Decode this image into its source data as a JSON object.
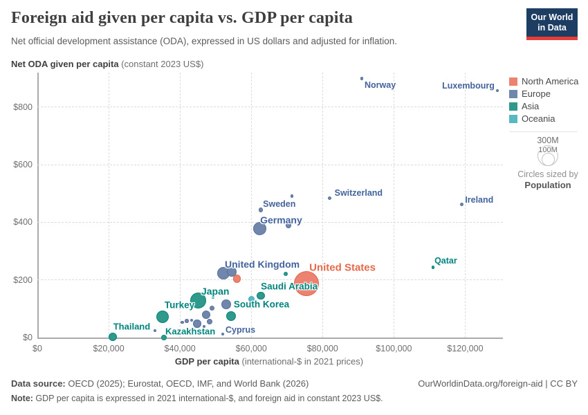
{
  "header": {
    "title": "Foreign aid given per capita vs. GDP per capita",
    "subtitle": "Net official development assistance (ODA), expressed in US dollars and adjusted for inflation.",
    "logo": {
      "line1": "Our World",
      "line2": "in Data",
      "bg": "#1d3d63",
      "bar": "#e63e36"
    }
  },
  "legend": {
    "items": [
      {
        "label": "North America",
        "color": "#ec8270"
      },
      {
        "label": "Europe",
        "color": "#7086ab"
      },
      {
        "label": "Asia",
        "color": "#2f998c"
      },
      {
        "label": "Oceania",
        "color": "#58b9c3"
      }
    ],
    "size": {
      "outer": "300M",
      "inner": "100M",
      "caption": "Circles sized by",
      "caption_bold": "Population"
    }
  },
  "chart_data": {
    "type": "scatter",
    "title": "Foreign aid given per capita vs. GDP per capita",
    "size_by": "Population",
    "grid": true,
    "legend_position": "right",
    "x": {
      "title_bold": "GDP per capita",
      "title_unit": " (international-$ in 2021 prices)",
      "min": 0,
      "max": 130000,
      "ticks": [
        {
          "value": 0,
          "label": "$0"
        },
        {
          "value": 20000,
          "label": "$20,000"
        },
        {
          "value": 40000,
          "label": "$40,000"
        },
        {
          "value": 60000,
          "label": "$60,000"
        },
        {
          "value": 80000,
          "label": "$80,000"
        },
        {
          "value": 100000,
          "label": "$100,000"
        },
        {
          "value": 120000,
          "label": "$120,000"
        }
      ]
    },
    "y": {
      "title_bold": "Net ODA given per capita",
      "title_unit": " (constant 2023 US$)",
      "min": 0,
      "max": 920,
      "ticks": [
        {
          "value": 0,
          "label": "$0"
        },
        {
          "value": 200,
          "label": "$200"
        },
        {
          "value": 400,
          "label": "$400"
        },
        {
          "value": 600,
          "label": "$600"
        },
        {
          "value": 800,
          "label": "$800"
        }
      ]
    },
    "series": [
      {
        "name": "North America",
        "color": "#ec8270",
        "stroke": "#e0654f",
        "label_color": "#e8684a",
        "points": [
          {
            "label": "United States",
            "gdp": 75500,
            "oda": 187,
            "r": 18.3,
            "lab": {
              "dx": 4,
              "dy": -23,
              "fs": 15
            }
          },
          {
            "label": "",
            "gdp": 56000,
            "oda": 204,
            "r": 5.7
          }
        ]
      },
      {
        "name": "Europe",
        "color": "#7086ab",
        "stroke": "#57719e",
        "label_color": "#44639c",
        "points": [
          {
            "label": "Norway",
            "gdp": 91000,
            "oda": 900,
            "r": 2.4,
            "lab": {
              "dx": 4,
              "dy": 10,
              "fs": 12.5
            }
          },
          {
            "label": "Luxembourg",
            "gdp": 129000,
            "oda": 858,
            "r": 2,
            "lab": {
              "dx": -4,
              "dy": -7,
              "fs": 12.5,
              "anchor": "end"
            }
          },
          {
            "label": "Switzerland",
            "gdp": 82000,
            "oda": 484,
            "r": 2.6,
            "lab": {
              "dx": 7,
              "dy": -8,
              "fs": 12.5
            }
          },
          {
            "label": "Ireland",
            "gdp": 119000,
            "oda": 462,
            "r": 2.6,
            "lab": {
              "dx": 5,
              "dy": -7,
              "fs": 12.5
            }
          },
          {
            "label": "Sweden",
            "gdp": 62700,
            "oda": 443,
            "r": 3.2,
            "lab": {
              "dx": 3,
              "dy": -9,
              "fs": 12.5
            }
          },
          {
            "label": "Germany",
            "gdp": 62300,
            "oda": 379,
            "r": 9.5,
            "lab": {
              "dx": 1,
              "dy": -12,
              "fs": 14
            }
          },
          {
            "label": "United Kingdom",
            "gdp": 52200,
            "oda": 223,
            "r": 9.3,
            "lab": {
              "dx": 2,
              "dy": -13,
              "fs": 14
            }
          },
          {
            "label": "Cyprus",
            "gdp": 52000,
            "oda": 12,
            "r": 2,
            "lab": {
              "dx": 4,
              "dy": -6,
              "fs": 12.5
            }
          },
          {
            "label": "",
            "gdp": 71400,
            "oda": 491,
            "r": 2.4
          },
          {
            "label": "",
            "gdp": 70400,
            "oda": 390,
            "r": 4.3
          },
          {
            "label": "",
            "gdp": 54500,
            "oda": 228,
            "r": 6.7
          },
          {
            "label": "",
            "gdp": 53000,
            "oda": 115,
            "r": 6.7
          },
          {
            "label": "",
            "gdp": 47300,
            "oda": 79,
            "r": 6
          },
          {
            "label": "",
            "gdp": 48300,
            "oda": 55,
            "r": 4
          },
          {
            "label": "",
            "gdp": 48900,
            "oda": 101,
            "r": 3.5
          },
          {
            "label": "",
            "gdp": 44800,
            "oda": 48,
            "r": 5.7
          },
          {
            "label": "",
            "gdp": 46800,
            "oda": 38,
            "r": 2.3
          },
          {
            "label": "",
            "gdp": 43300,
            "oda": 60,
            "r": 2
          },
          {
            "label": "",
            "gdp": 41900,
            "oda": 58,
            "r": 2.7
          },
          {
            "label": "",
            "gdp": 40700,
            "oda": 53,
            "r": 2.3
          },
          {
            "label": "",
            "gdp": 33000,
            "oda": 24,
            "r": 2
          }
        ]
      },
      {
        "name": "Asia",
        "color": "#2f998c",
        "stroke": "#08857a",
        "label_color": "#00847e",
        "points": [
          {
            "label": "Qatar",
            "gdp": 111000,
            "oda": 244,
            "r": 2.4,
            "lab": {
              "dx": 2,
              "dy": -9,
              "fs": 12.5
            }
          },
          {
            "label": "Saudi Arabia",
            "gdp": 62700,
            "oda": 146,
            "r": 5.7,
            "lab": {
              "dx": 0,
              "dy": -13,
              "fs": 13.5
            }
          },
          {
            "label": "Japan",
            "gdp": 45200,
            "oda": 129,
            "r": 11.5,
            "lab": {
              "dx": 4,
              "dy": -13,
              "fs": 14
            }
          },
          {
            "label": "South Korea",
            "gdp": 54300,
            "oda": 74,
            "r": 7.3,
            "lab": {
              "dx": 4,
              "dy": -17,
              "fs": 13.5
            }
          },
          {
            "label": "Turkey",
            "gdp": 35100,
            "oda": 72,
            "r": 9,
            "lab": {
              "dx": 3,
              "dy": -17,
              "fs": 13.5
            }
          },
          {
            "label": "Kazakhstan",
            "gdp": 35500,
            "oda": 0,
            "r": 4,
            "lab": {
              "dx": 2,
              "dy": -9,
              "fs": 13
            }
          },
          {
            "label": "Thailand",
            "gdp": 21100,
            "oda": 2,
            "r": 6,
            "lab": {
              "dx": 1,
              "dy": -15,
              "fs": 13
            }
          },
          {
            "label": "",
            "gdp": 69700,
            "oda": 220,
            "r": 3
          }
        ]
      },
      {
        "name": "Oceania",
        "color": "#58b9c3",
        "stroke": "#3aa9b6",
        "label_color": "#2f9fae",
        "points": [
          {
            "label": "",
            "gdp": 60000,
            "oda": 134,
            "r": 4.5
          },
          {
            "label": "",
            "gdp": 49300,
            "oda": 141,
            "r": 2.3
          }
        ]
      }
    ]
  },
  "footer": {
    "source_label": "Data source:",
    "source_text": " OECD (2025); Eurostat, OECD, IMF, and World Bank (2026)",
    "link": "OurWorldinData.org/foreign-aid | CC BY",
    "note_label": "Note:",
    "note_text": " GDP per capita is expressed in 2021 international-$, and foreign aid in constant 2023 US$."
  }
}
